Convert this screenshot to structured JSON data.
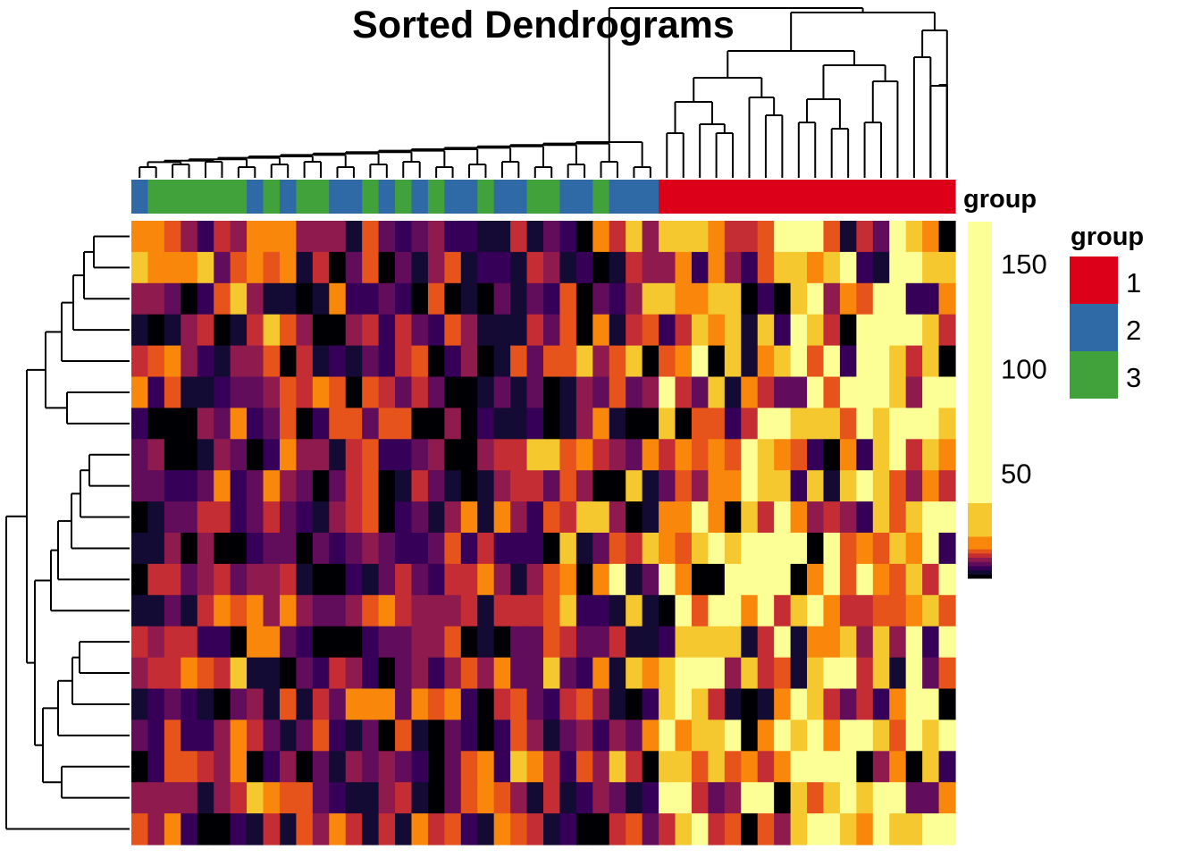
{
  "chart_data": {
    "type": "heatmap",
    "title": "Sorted Dendrograms",
    "n_rows": 20,
    "n_cols": 50,
    "palette": {
      "K": "#000004",
      "D": "#140b34",
      "V": "#370058",
      "P": "#620c5c",
      "M": "#8f1a4e",
      "R": "#c42d33",
      "O": "#e6531b",
      "A": "#f8870c",
      "Y": "#f5c82f",
      "L": "#fcfe96"
    },
    "legend_bins": [
      {
        "code": "K",
        "from": 0,
        "to": 2
      },
      {
        "code": "D",
        "from": 2,
        "to": 4
      },
      {
        "code": "V",
        "from": 4,
        "to": 6
      },
      {
        "code": "P",
        "from": 6,
        "to": 8
      },
      {
        "code": "M",
        "from": 8,
        "to": 10
      },
      {
        "code": "R",
        "from": 10,
        "to": 12
      },
      {
        "code": "O",
        "from": 12,
        "to": 14
      },
      {
        "code": "A",
        "from": 14,
        "to": 20
      },
      {
        "code": "Y",
        "from": 20,
        "to": 36
      },
      {
        "code": "L",
        "from": 36,
        "to": 170
      }
    ],
    "rows": [
      "AAOMVRMAAAMMMDOPVPMVVDDRDPVKARYMYYYARROLLLODRPLYAK",
      "YAAAYPOAOADRKPOKPDMODVVDRMDVKDRMMAVAMVOYYAYLVDLLYY",
      "MMPKVOYMDDKDAVVPVKOKDKPDPVOKPVMYYAAYYKVKYLMAOLLVVA",
      "DKDMRKDRYOMKKMRVRPVOMDDDRPOKADROVRYAYDYVLYRKLLLLYR",
      "ROAMVDMMOKRDVDPVROKVMKDOPOOYMOYKOALKYDAYLOLVLLYRYK",
      "AVODDVPPMORAOKORPRPKKDPDPKDMPOPMLRPYDARPPLOLLLYMLL",
      "VKKKMPAVPOKVOOPOOKKMKVDDVKDMADKKYKOOVRLLYYYOLYLLLY",
      "PMKKDMPKVAMMDROVVPMKKMRRYYOARMPARAOAOLYAOVKAVYLRYA",
      "PPVVPAVPAMPKPROKDRPDKDMRRPOMKKYDPOMAALYYVYDYLYOMAR",
      "KDPPRRVPRPVDMROKVPDMADAMVORYYMKDAALAKYRLAMRMVYOYLL",
      "DDMKMKKVPPKPVPMPVVPOVRVVVKYDPORYAOYLYLLLLKLOAOYALV",
      "KRRPMRPMMRDKKVDPRPVRRAMDMOAKALDPLAKKLLLLKALOLAOYRL",
      "DDPDRAOAMAMPPMOARMMMRDRRROYVVDYDKLOLLALRYLARROOAYO",
      "RMRRVVKAAPVKKKVPPMMOKDKPPORPPRDDVYYYYDRLDAAYMYMLVL",
      "MRRAORYDDKPVRMVKPMVMOMAPPYPVADYAYLLLMYRODYLLRYDLPO",
      "DVPVDKPMDODRPAAAPAOAVKROPVROMDKVYLYRDKDALYRPRVALLK",
      "PVOVVMARPDPOVDPKODKPVKVOMDPMVMPALAYYLKALYLALLYOLYL",
      "KVOORMAKVMKPDMPMPVKPOAVYARVOMYRKYYOYOARALLLLKMAKYV",
      "MMMMDMRYAOOPVDDMRDKPOAOMDRDVMPDVLLRPMLLKYOYLYLLPPA",
      "OMAVKKVDRDOMARDRDAROVDAORDVKKROPRYLROKOMYLLYALYYLL"
    ],
    "column_annotation": {
      "title": "group",
      "values": [
        2,
        3,
        3,
        3,
        3,
        3,
        3,
        2,
        3,
        2,
        3,
        3,
        2,
        2,
        3,
        2,
        3,
        2,
        3,
        2,
        2,
        3,
        2,
        2,
        3,
        3,
        2,
        2,
        3,
        2,
        2,
        2,
        1,
        1,
        1,
        1,
        1,
        1,
        1,
        1,
        1,
        1,
        1,
        1,
        1,
        1,
        1,
        1,
        1,
        1
      ]
    },
    "colorbar": {
      "title": "group",
      "ticks": [
        50,
        100,
        150
      ],
      "range": [
        0,
        170
      ]
    },
    "group_legend": {
      "title": "group",
      "items": [
        {
          "label": "1",
          "color": "#dc0019"
        },
        {
          "label": "2",
          "color": "#2f6aa7"
        },
        {
          "label": "3",
          "color": "#41a13a"
        }
      ]
    },
    "col_dendrogram": {
      "merges": [
        [
          0,
          1,
          0.04
        ],
        [
          2,
          3,
          0.05
        ],
        [
          4,
          5,
          0.055
        ],
        [
          6,
          7,
          0.06
        ],
        [
          8,
          9,
          0.05
        ],
        [
          10,
          11,
          0.06
        ],
        [
          12,
          13,
          0.04
        ],
        [
          14,
          15,
          0.045
        ],
        [
          16,
          17,
          0.04
        ],
        [
          18,
          19,
          0.05
        ],
        [
          20,
          21,
          0.045
        ],
        [
          22,
          23,
          0.04
        ],
        [
          24,
          25,
          0.05
        ],
        [
          26,
          27,
          0.045
        ],
        [
          28,
          29,
          0.05
        ],
        [
          30,
          31,
          0.08
        ],
        [
          32,
          33,
          0.2
        ],
        [
          34,
          35,
          0.16
        ],
        [
          36,
          37,
          0.2
        ],
        [
          38,
          39,
          0.2
        ],
        [
          40,
          41,
          0.18
        ],
        [
          42,
          43,
          0.18
        ],
        [
          44,
          45,
          0.25
        ],
        [
          46,
          47,
          0.32
        ],
        [
          48,
          49,
          0.32
        ]
      ]
    },
    "row_dendrogram": {}
  }
}
